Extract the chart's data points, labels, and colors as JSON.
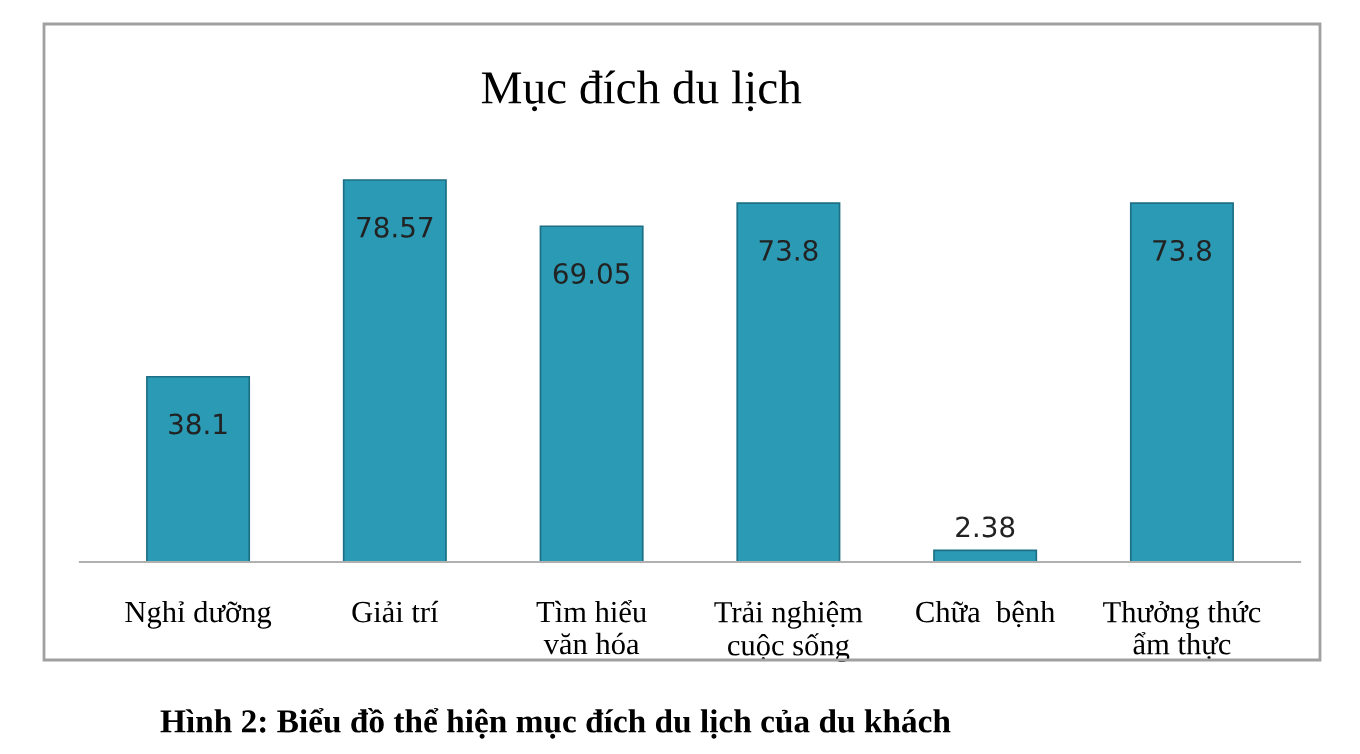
{
  "chart_data": {
    "type": "bar",
    "title": "Mục đích du lịch",
    "categories": [
      "Nghỉ dưỡng",
      "Giải trí",
      "Tìm hiểu\nvăn hóa",
      "Trải nghiệm\ncuộc sống",
      "Chữa  bệnh",
      "Thưởng thức\nẩm thực"
    ],
    "values": [
      38.1,
      78.57,
      69.05,
      73.8,
      2.38,
      73.8
    ],
    "color": "#2b9ab4",
    "data_labels": true,
    "grid": false,
    "legend": false,
    "annotations": [
      "Hình 2: Biểu đồ thể hiện mục đích du lịch của du khách"
    ]
  }
}
